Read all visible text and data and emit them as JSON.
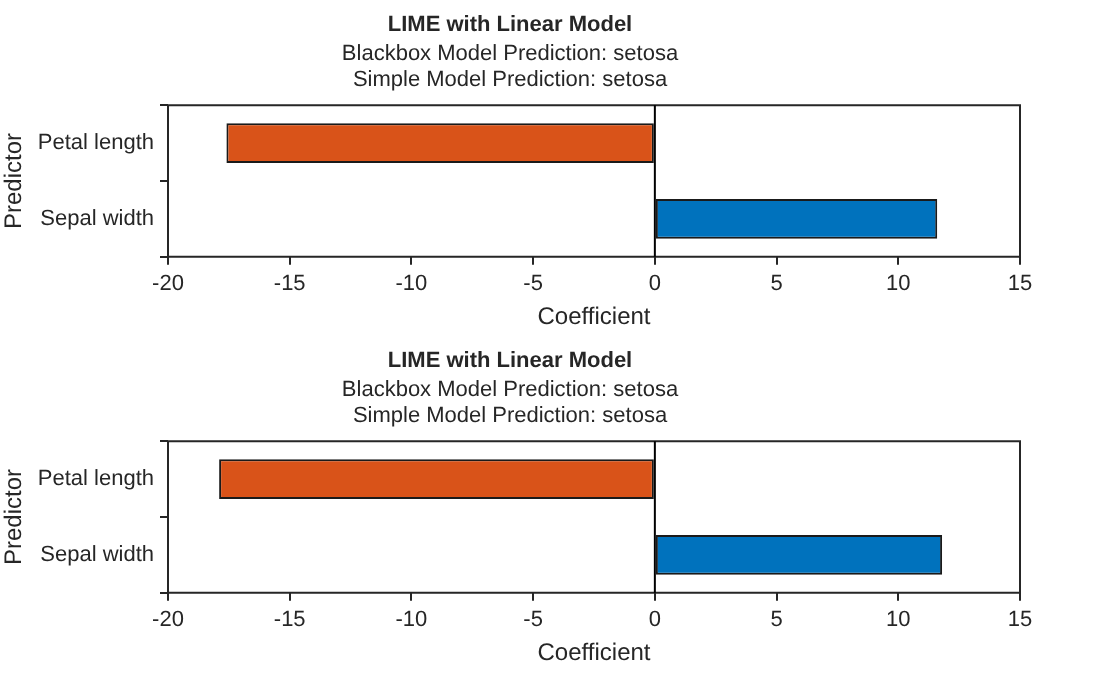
{
  "chart_data": [
    {
      "type": "bar",
      "orientation": "horizontal",
      "title": "LIME with Linear Model",
      "subtitle": "Blackbox Model Prediction: setosa\nSimple Model Prediction: setosa",
      "xlabel": "Coefficient",
      "ylabel": "Predictor",
      "categories": [
        "Petal length",
        "Sepal width"
      ],
      "values": [
        -17.6,
        11.6
      ],
      "colors": [
        "#d95319",
        "#0072bd"
      ],
      "xlim": [
        -20,
        15
      ],
      "xticks": [
        -20,
        -15,
        -10,
        -5,
        0,
        5,
        10,
        15
      ],
      "grid": false,
      "legend": false,
      "ref_lines": [
        {
          "axis": "x",
          "value": 0,
          "color": "#000000"
        }
      ]
    },
    {
      "type": "bar",
      "orientation": "horizontal",
      "title": "LIME with Linear Model",
      "subtitle": "Blackbox Model Prediction: setosa\nSimple Model Prediction: setosa",
      "xlabel": "Coefficient",
      "ylabel": "Predictor",
      "categories": [
        "Petal length",
        "Sepal width"
      ],
      "values": [
        -17.9,
        11.8
      ],
      "colors": [
        "#d95319",
        "#0072bd"
      ],
      "xlim": [
        -20,
        15
      ],
      "xticks": [
        -20,
        -15,
        -10,
        -5,
        0,
        5,
        10,
        15
      ],
      "grid": false,
      "legend": false,
      "ref_lines": [
        {
          "axis": "x",
          "value": 0,
          "color": "#000000"
        }
      ]
    }
  ]
}
